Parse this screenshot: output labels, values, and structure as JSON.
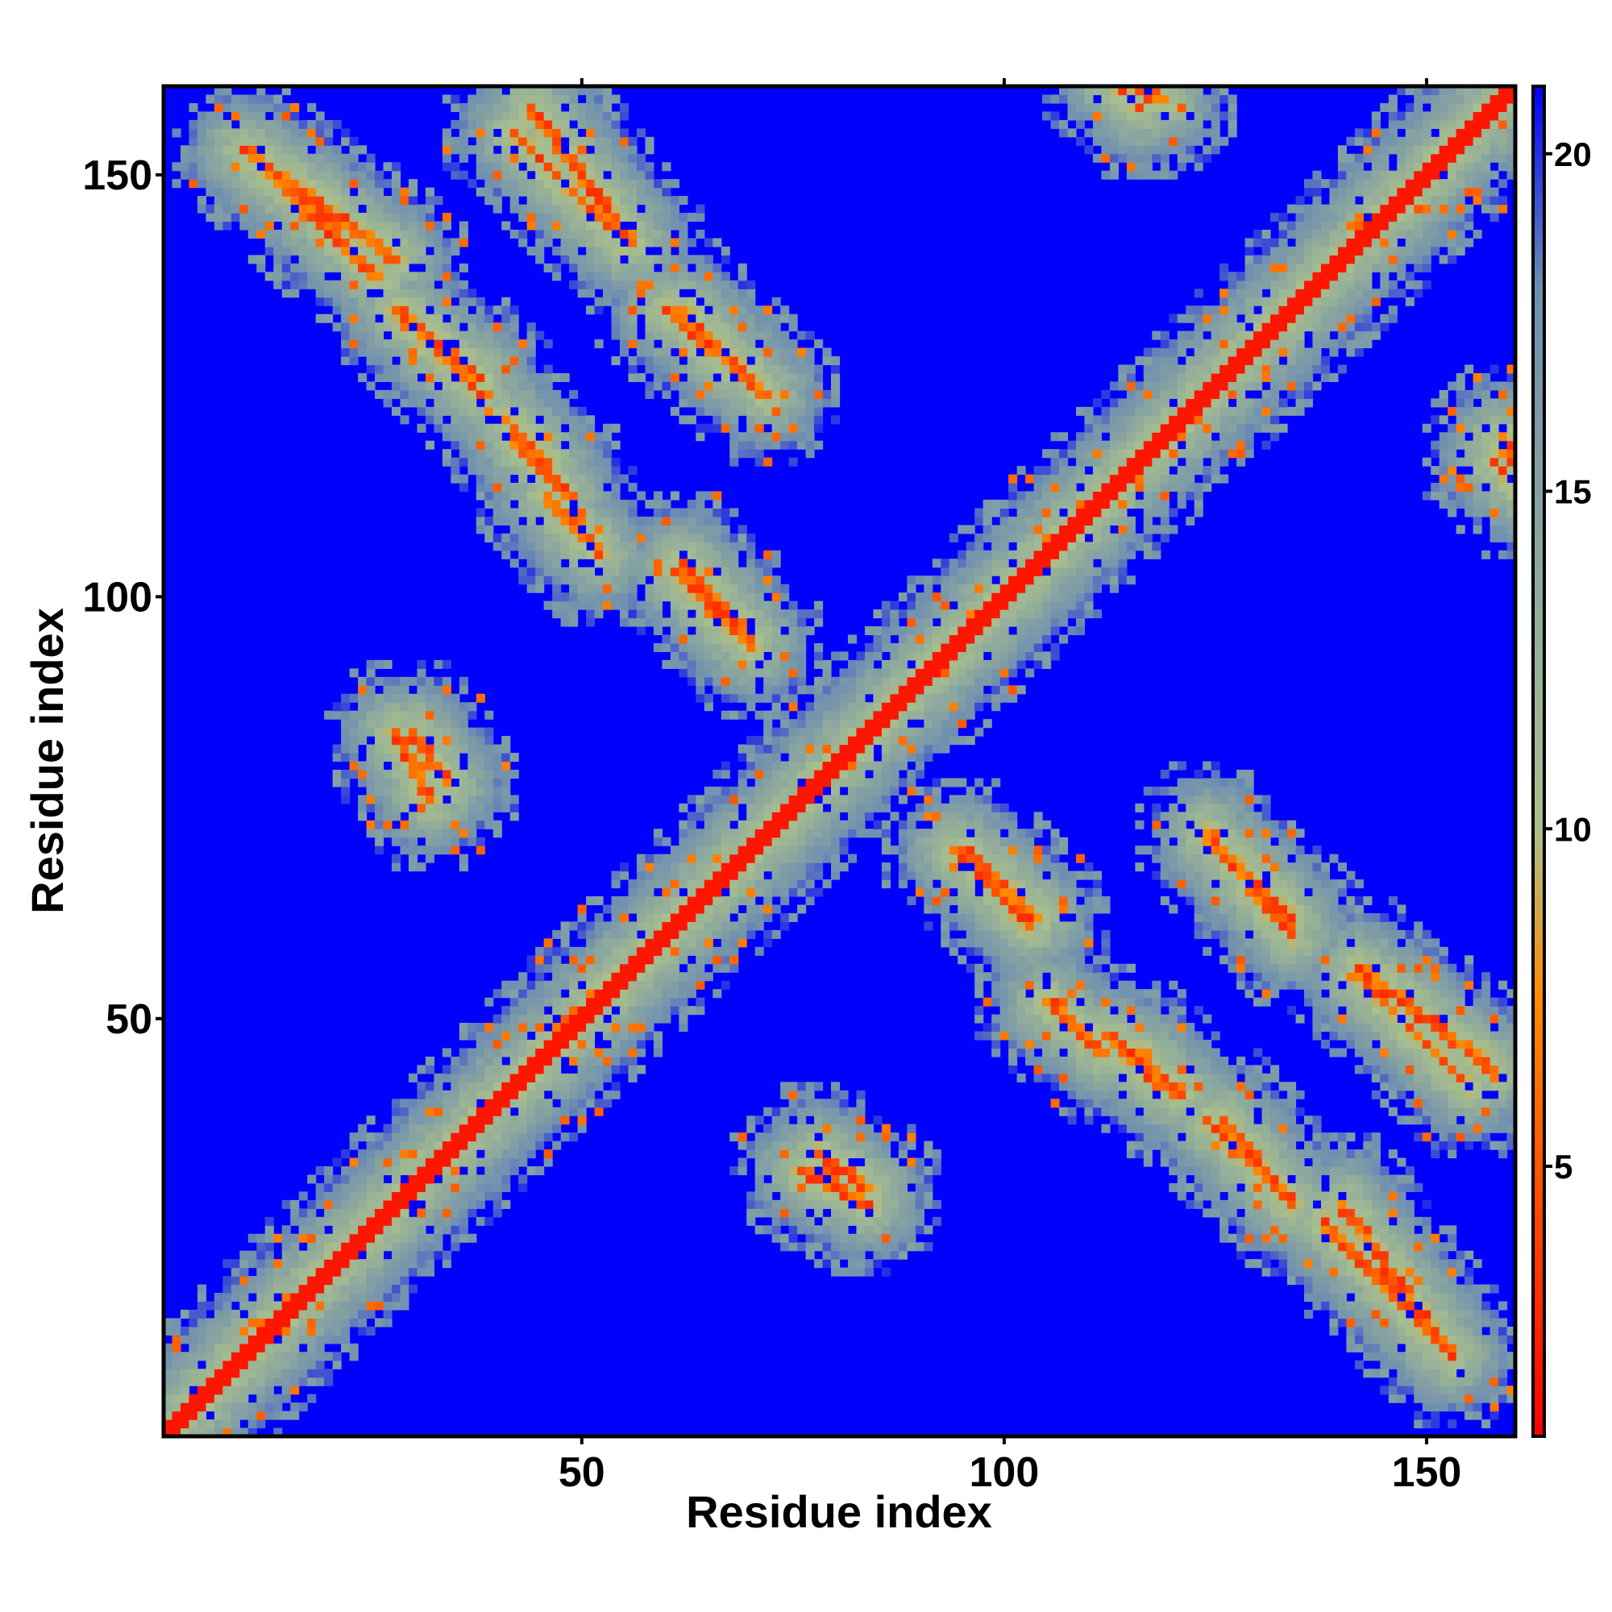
{
  "chart_data": {
    "type": "heatmap",
    "title": "",
    "xlabel": "Residue index",
    "ylabel": "Residue index",
    "xlim": [
      1,
      160
    ],
    "ylim": [
      1,
      160
    ],
    "x_ticks": [
      50,
      100,
      150
    ],
    "y_ticks": [
      50,
      100,
      150
    ],
    "colorbar": {
      "label": "",
      "range": [
        1,
        21
      ],
      "ticks": [
        5,
        10,
        15,
        20
      ],
      "colors": [
        "#ff0000",
        "#ff8c00",
        "#a9bf8c",
        "#6f8fb0",
        "#0000ff"
      ],
      "stops": [
        1,
        7.5,
        10,
        18,
        21
      ]
    },
    "description_of_values": "symmetric residue-residue distance map",
    "diagonal_value": 2,
    "background_value": 21,
    "contact_bands": [
      {
        "x": [
          2,
          60
        ],
        "y": [
          2,
          60
        ],
        "orientation": "parallel"
      },
      {
        "x": [
          60,
          142
        ],
        "y": [
          60,
          142
        ],
        "orientation": "parallel"
      },
      {
        "x": [
          10,
          28
        ],
        "y": [
          153,
          140
        ],
        "orientation": "antiparallel"
      },
      {
        "x": [
          28,
          38
        ],
        "y": [
          134,
          124
        ],
        "orientation": "antiparallel"
      },
      {
        "x": [
          42,
          48
        ],
        "y": [
          119,
          112
        ],
        "orientation": "antiparallel"
      },
      {
        "x": [
          47,
          51
        ],
        "y": [
          111,
          106
        ],
        "orientation": "antiparallel"
      },
      {
        "x": [
          44,
          56
        ],
        "y": [
          158,
          142
        ],
        "orientation": "antiparallel"
      },
      {
        "x": [
          62,
          71
        ],
        "y": [
          134,
          125
        ],
        "orientation": "antiparallel"
      },
      {
        "x": [
          61,
          70
        ],
        "y": [
          103,
          94
        ],
        "orientation": "antiparallel"
      },
      {
        "x": [
          30,
          34
        ],
        "y": [
          84,
          78
        ],
        "orientation": "antiparallel"
      },
      {
        "x": [
          76,
          84
        ],
        "y": [
          32,
          28
        ],
        "orientation": "antiparallel"
      },
      {
        "x": [
          95,
          104
        ],
        "y": [
          70,
          62
        ],
        "orientation": "antiparallel"
      },
      {
        "x": [
          105,
          112
        ],
        "y": [
          52,
          46
        ],
        "orientation": "antiparallel"
      },
      {
        "x": [
          116,
          121
        ],
        "y": [
          46,
          41
        ],
        "orientation": "antiparallel"
      },
      {
        "x": [
          126,
          134
        ],
        "y": [
          38,
          28
        ],
        "orientation": "antiparallel"
      },
      {
        "x": [
          138,
          153
        ],
        "y": [
          26,
          10
        ],
        "orientation": "antiparallel"
      },
      {
        "x": [
          124,
          134
        ],
        "y": [
          72,
          60
        ],
        "orientation": "antiparallel"
      },
      {
        "x": [
          142,
          155
        ],
        "y": [
          55,
          42
        ],
        "orientation": "antiparallel"
      },
      {
        "x": [
          159,
          160
        ],
        "y": [
          119,
          116
        ],
        "orientation": "isolated"
      },
      {
        "x": [
          113,
          116
        ],
        "y": [
          161,
          158
        ],
        "orientation": "isolated"
      }
    ]
  }
}
